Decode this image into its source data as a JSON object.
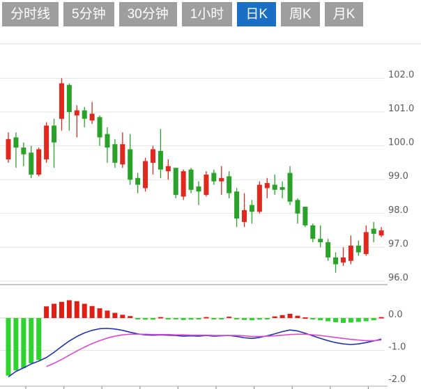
{
  "tabbar": {
    "tabs": [
      {
        "label": "分时线",
        "active": false
      },
      {
        "label": "5分钟",
        "active": false
      },
      {
        "label": "30分钟",
        "active": false
      },
      {
        "label": "1小时",
        "active": false
      },
      {
        "label": "日K",
        "active": true
      },
      {
        "label": "周K",
        "active": false
      },
      {
        "label": "月K",
        "active": false
      }
    ],
    "active_bg": "#1a6fc4",
    "inactive_bg": "#9e9e9e"
  },
  "chart_data": {
    "type": "candlestick",
    "title": "",
    "legend": [],
    "grid": true,
    "price_axis": {
      "side": "right",
      "ticks": [
        102.0,
        101.0,
        100.0,
        99.0,
        98.0,
        97.0,
        96.0
      ],
      "range": [
        95.8,
        102.4
      ]
    },
    "macd_axis": {
      "side": "right",
      "ticks": [
        0.0,
        -1.0,
        -2.0
      ],
      "range": [
        0.7,
        -2.1
      ]
    },
    "candles_ohlc": [
      [
        99.6,
        100.4,
        99.5,
        100.2
      ],
      [
        100.25,
        100.4,
        99.35,
        99.95
      ],
      [
        99.95,
        100.1,
        99.4,
        99.75
      ],
      [
        99.8,
        100.0,
        99.05,
        99.15
      ],
      [
        99.15,
        99.95,
        99.1,
        99.9
      ],
      [
        99.6,
        100.7,
        99.5,
        100.6
      ],
      [
        100.6,
        100.8,
        99.35,
        100.1
      ],
      [
        100.8,
        102.0,
        100.45,
        101.85
      ],
      [
        101.8,
        101.85,
        100.45,
        101.0
      ],
      [
        100.9,
        101.2,
        100.25,
        101.05
      ],
      [
        101.05,
        101.15,
        100.55,
        100.8
      ],
      [
        100.75,
        101.3,
        100.65,
        100.95
      ],
      [
        100.85,
        100.9,
        100.0,
        100.25
      ],
      [
        100.35,
        100.55,
        99.5,
        99.95
      ],
      [
        100.05,
        100.2,
        99.35,
        99.5
      ],
      [
        99.45,
        100.4,
        99.35,
        100.05
      ],
      [
        99.9,
        100.35,
        98.85,
        99.0
      ],
      [
        99.05,
        99.2,
        98.6,
        98.85
      ],
      [
        98.75,
        99.65,
        98.65,
        99.55
      ],
      [
        99.5,
        100.0,
        99.15,
        99.9
      ],
      [
        99.85,
        100.5,
        99.05,
        99.3
      ],
      [
        99.25,
        99.6,
        99.0,
        99.4
      ],
      [
        99.35,
        99.35,
        98.45,
        98.55
      ],
      [
        98.5,
        99.3,
        98.4,
        99.25
      ],
      [
        99.3,
        99.35,
        98.6,
        98.7
      ],
      [
        98.8,
        98.95,
        98.25,
        98.65
      ],
      [
        98.55,
        99.25,
        98.5,
        99.15
      ],
      [
        99.2,
        99.3,
        98.85,
        98.95
      ],
      [
        98.95,
        99.4,
        98.55,
        99.05
      ],
      [
        99.1,
        99.25,
        98.45,
        98.6
      ],
      [
        98.65,
        98.75,
        97.6,
        97.85
      ],
      [
        97.75,
        98.6,
        97.6,
        98.1
      ],
      [
        98.25,
        98.4,
        97.7,
        98.05
      ],
      [
        98.05,
        98.95,
        98.0,
        98.85
      ],
      [
        98.75,
        99.05,
        98.45,
        98.9
      ],
      [
        98.85,
        99.15,
        98.55,
        98.7
      ],
      [
        98.78,
        98.95,
        98.45,
        98.7
      ],
      [
        99.2,
        99.4,
        98.25,
        98.35
      ],
      [
        98.4,
        98.45,
        97.7,
        98.0
      ],
      [
        98.2,
        98.2,
        97.6,
        97.65
      ],
      [
        97.65,
        97.7,
        97.15,
        97.25
      ],
      [
        97.25,
        97.65,
        97.0,
        97.15
      ],
      [
        97.15,
        97.25,
        96.6,
        96.7
      ],
      [
        96.7,
        96.85,
        96.25,
        96.5
      ],
      [
        96.55,
        97.0,
        96.45,
        96.7
      ],
      [
        96.6,
        97.35,
        96.5,
        97.05
      ],
      [
        97.05,
        97.2,
        96.75,
        96.85
      ],
      [
        96.8,
        97.65,
        96.75,
        97.45
      ],
      [
        97.55,
        97.75,
        97.15,
        97.4
      ],
      [
        97.35,
        97.6,
        97.3,
        97.5
      ]
    ],
    "macd": {
      "hist": [
        -1.78,
        -1.62,
        -1.55,
        -1.4,
        -1.3,
        0.36,
        0.44,
        0.5,
        0.55,
        0.52,
        0.44,
        0.37,
        0.3,
        0.23,
        0.16,
        0.1,
        0.06,
        -0.03,
        -0.05,
        -0.05,
        0.03,
        -0.02,
        -0.04,
        -0.06,
        -0.05,
        -0.04,
        0.03,
        -0.03,
        -0.02,
        0.04,
        -0.02,
        -0.06,
        -0.07,
        -0.05,
        -0.02,
        0.05,
        0.09,
        0.13,
        0.07,
        0.02,
        -0.04,
        -0.07,
        -0.1,
        -0.13,
        -0.15,
        -0.14,
        -0.12,
        -0.1,
        -0.07,
        0.03
      ],
      "dif": [
        -1.82,
        -1.65,
        -1.54,
        -1.42,
        -1.33,
        -1.22,
        -1.06,
        -0.88,
        -0.71,
        -0.57,
        -0.46,
        -0.38,
        -0.33,
        -0.32,
        -0.34,
        -0.38,
        -0.44,
        -0.49,
        -0.52,
        -0.53,
        -0.52,
        -0.53,
        -0.54,
        -0.56,
        -0.55,
        -0.56,
        -0.54,
        -0.56,
        -0.55,
        -0.54,
        -0.57,
        -0.61,
        -0.63,
        -0.6,
        -0.55,
        -0.49,
        -0.42,
        -0.37,
        -0.4,
        -0.47,
        -0.55,
        -0.63,
        -0.7,
        -0.76,
        -0.8,
        -0.82,
        -0.8,
        -0.76,
        -0.71,
        -0.65
      ],
      "dea": [
        null,
        null,
        null,
        null,
        null,
        -1.5,
        -1.4,
        -1.28,
        -1.15,
        -1.02,
        -0.9,
        -0.79,
        -0.7,
        -0.62,
        -0.56,
        -0.52,
        -0.5,
        -0.5,
        -0.5,
        -0.51,
        -0.51,
        -0.51,
        -0.52,
        -0.52,
        -0.53,
        -0.53,
        -0.53,
        -0.54,
        -0.54,
        -0.54,
        -0.54,
        -0.55,
        -0.57,
        -0.57,
        -0.56,
        -0.55,
        -0.53,
        -0.51,
        -0.5,
        -0.5,
        -0.52,
        -0.54,
        -0.57,
        -0.6,
        -0.63,
        -0.66,
        -0.68,
        -0.7,
        -0.7,
        -0.68
      ]
    },
    "colors": {
      "up": "#e0281e",
      "down": "#2aa22a",
      "hist_up": "#e01f14",
      "hist_down": "#2fd32f",
      "dif_line": "#2032b4",
      "dea_line": "#dc46d2",
      "grid": "#e3e3e3",
      "zero_line": "#d9caca",
      "axis_text": "#5a5a5a",
      "panel_border": "#c6c6c6"
    }
  }
}
